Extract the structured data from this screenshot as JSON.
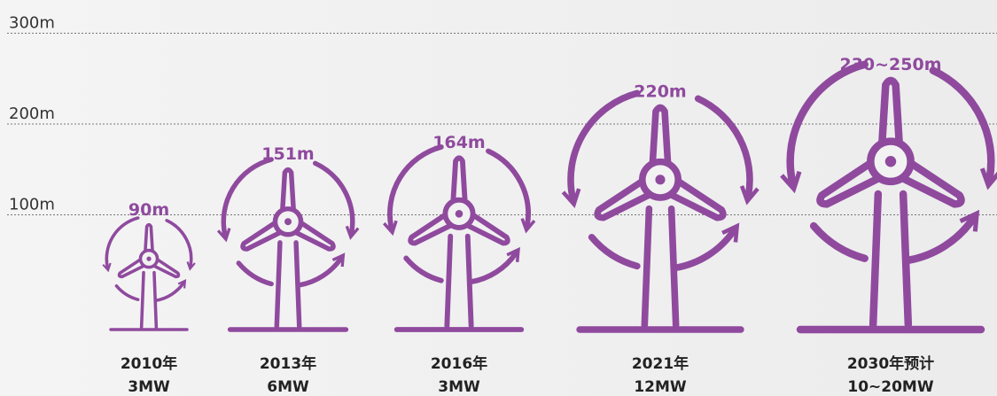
{
  "chart_data": {
    "type": "pictograph",
    "categories": [
      "2010年",
      "2013年",
      "2016年",
      "2021年",
      "2030年预计"
    ],
    "capacities": [
      "3MW",
      "6MW",
      "3MW",
      "12MW",
      "10~20MW"
    ],
    "values": [
      90,
      151,
      164,
      220,
      250
    ],
    "value_labels": [
      "90m",
      "151m",
      "164m",
      "220m",
      "230~250m"
    ],
    "color": "#8f4a9e",
    "ylim": [
      0,
      300
    ],
    "yticks": [
      {
        "value": 100,
        "label": "100m"
      },
      {
        "value": 200,
        "label": "200m"
      },
      {
        "value": 300,
        "label": "300m"
      }
    ],
    "grid": true
  }
}
